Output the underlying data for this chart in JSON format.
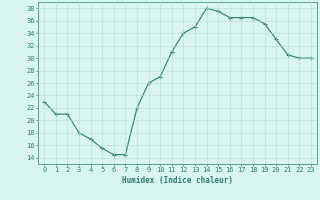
{
  "x": [
    0,
    1,
    2,
    3,
    4,
    5,
    6,
    7,
    8,
    9,
    10,
    11,
    12,
    13,
    14,
    15,
    16,
    17,
    18,
    19,
    20,
    21,
    22,
    23
  ],
  "y": [
    23,
    21,
    21,
    18,
    17,
    15.5,
    14.5,
    14.5,
    22,
    26,
    27,
    31,
    34,
    35,
    38,
    37.5,
    36.5,
    36.5,
    36.5,
    35.5,
    33,
    30.5,
    30,
    30
  ],
  "line_color": "#2e7d6e",
  "marker": "+",
  "marker_size": 3,
  "marker_linewidth": 0.8,
  "line_width": 0.8,
  "bg_color": "#d8f5f0",
  "grid_color": "#b8ddd8",
  "xlabel": "Humidex (Indice chaleur)",
  "ylabel_ticks": [
    14,
    16,
    18,
    20,
    22,
    24,
    26,
    28,
    30,
    32,
    34,
    36,
    38
  ],
  "xlim": [
    -0.5,
    23.5
  ],
  "ylim": [
    13,
    39
  ],
  "xticks": [
    0,
    1,
    2,
    3,
    4,
    5,
    6,
    7,
    8,
    9,
    10,
    11,
    12,
    13,
    14,
    15,
    16,
    17,
    18,
    19,
    20,
    21,
    22,
    23
  ],
  "tick_color": "#2e7d6e",
  "label_fontsize": 5.5,
  "tick_fontsize": 5
}
